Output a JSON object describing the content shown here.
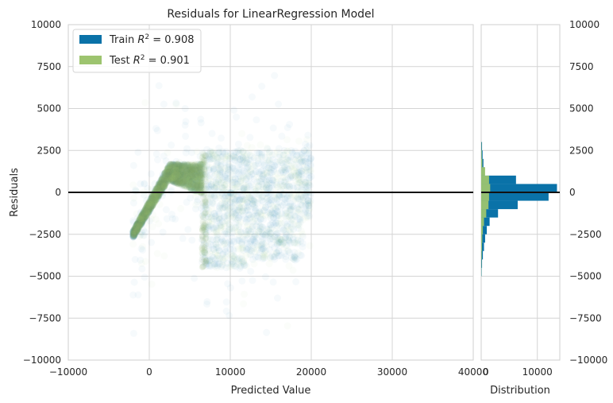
{
  "chart_data": {
    "type": "scatter",
    "title": "Residuals for LinearRegression Model",
    "xlabel": "Predicted Value",
    "ylabel": "Residuals",
    "xlim": [
      -10000,
      40000
    ],
    "ylim": [
      -10000,
      10000
    ],
    "x_ticks": [
      "−10000",
      "0",
      "10000",
      "20000",
      "30000",
      "40000"
    ],
    "y_ticks": [
      "−10000",
      "−7500",
      "−5000",
      "−2500",
      "0",
      "2500",
      "5000",
      "7500",
      "10000"
    ],
    "grid": true,
    "zero_line": 0,
    "legend_position": "top-left",
    "series": [
      {
        "name": "Train R² = 0.908",
        "color": "#0072B2",
        "alpha": 0.02
      },
      {
        "name": "Test R² = 0.901",
        "color": "#9BC16E",
        "alpha": 0.02
      }
    ],
    "legend": [
      {
        "prefix": "Train ",
        "r": "R",
        "sup": "2",
        "value": " = 0.908",
        "color": "#0a72a8"
      },
      {
        "prefix": "Test ",
        "r": "R",
        "sup": "2",
        "value": " = 0.901",
        "color": "#9dc46f"
      }
    ],
    "histogram": {
      "xlabel": "Distribution",
      "x_ticks": [
        "0",
        "10000"
      ],
      "xlim": [
        0,
        14000
      ],
      "bin_edges": [
        -5000,
        -4500,
        -4000,
        -3500,
        -3000,
        -2500,
        -2000,
        -1500,
        -1000,
        -500,
        0,
        500,
        1000,
        1500,
        2000,
        2500,
        3000
      ],
      "train_counts": [
        80,
        150,
        300,
        500,
        700,
        1000,
        1500,
        3000,
        6500,
        12000,
        13500,
        6200,
        600,
        400,
        250,
        150
      ],
      "test_counts": [
        30,
        50,
        100,
        150,
        200,
        300,
        500,
        900,
        1300,
        1400,
        1600,
        1400,
        700,
        200,
        100,
        50
      ]
    }
  }
}
